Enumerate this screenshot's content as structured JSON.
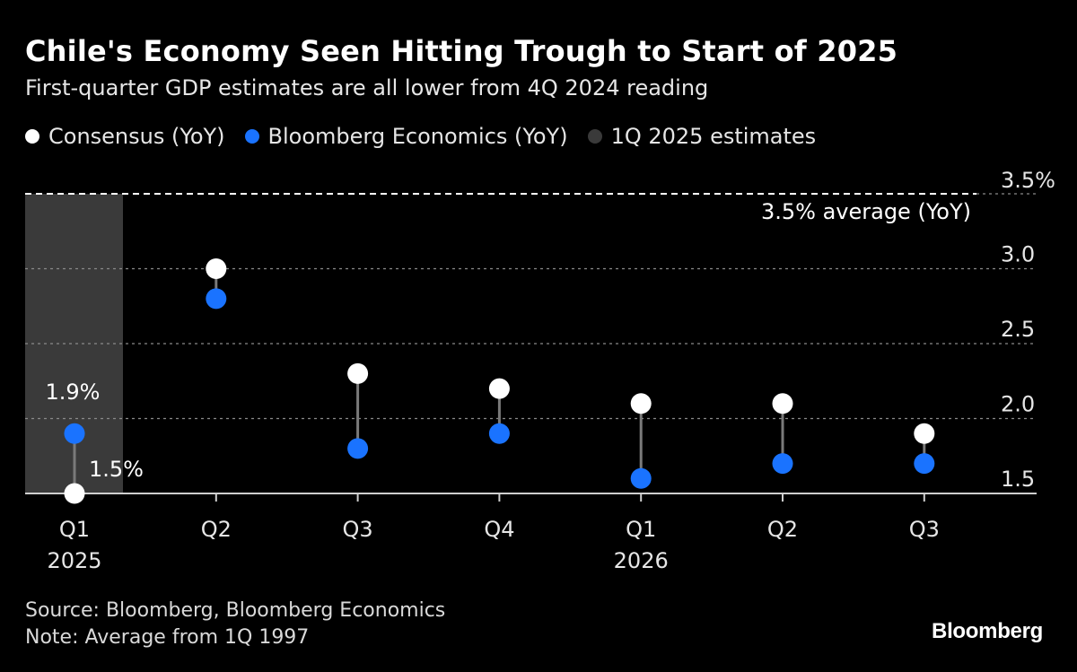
{
  "title": "Chile's Economy Seen Hitting Trough to Start of 2025",
  "subtitle": "First-quarter GDP estimates are all lower from 4Q 2024 reading",
  "legend": [
    {
      "label": "Consensus (YoY)",
      "color": "#ffffff"
    },
    {
      "label": "Bloomberg Economics (YoY)",
      "color": "#1a73ff"
    },
    {
      "label": "1Q 2025 estimates",
      "color": "#3a3a3a"
    }
  ],
  "source": "Source: Bloomberg, Bloomberg Economics",
  "note": "Note: Average from 1Q 1997",
  "brand": "Bloomberg",
  "chart_data": {
    "type": "scatter",
    "categories": [
      "Q1",
      "Q2",
      "Q3",
      "Q4",
      "Q1",
      "Q2",
      "Q3"
    ],
    "year_labels": [
      "2025",
      "",
      "",
      "",
      "2026",
      "",
      ""
    ],
    "series": [
      {
        "name": "Consensus (YoY)",
        "color": "#ffffff",
        "values": [
          1.5,
          3.0,
          2.3,
          2.2,
          2.1,
          2.1,
          1.9
        ]
      },
      {
        "name": "Bloomberg Economics (YoY)",
        "color": "#1a73ff",
        "values": [
          1.9,
          2.8,
          1.8,
          1.9,
          1.6,
          1.7,
          1.7
        ]
      }
    ],
    "highlight_category_index": 0,
    "point_labels": [
      {
        "category_index": 0,
        "series": "Bloomberg Economics (YoY)",
        "text": "1.9%"
      },
      {
        "category_index": 0,
        "series": "Consensus (YoY)",
        "text": "1.5%"
      }
    ],
    "reference_line": {
      "value": 3.5,
      "label": "3.5% average (YoY)"
    },
    "yticks": [
      3.5,
      3.0,
      2.5,
      2.0,
      1.5
    ],
    "ytick_labels": [
      "3.5%",
      "3.0",
      "2.5",
      "2.0",
      "1.5"
    ],
    "ylim": [
      1.5,
      3.5
    ],
    "grid": true,
    "axis_position": "right",
    "legend_position": "top-left"
  }
}
